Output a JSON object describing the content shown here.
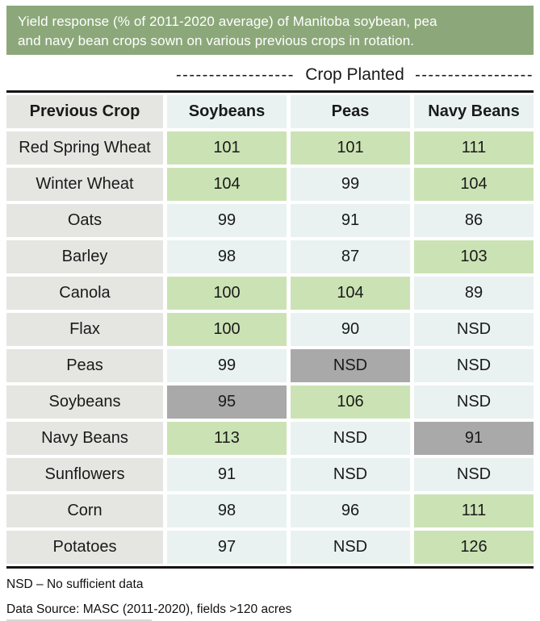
{
  "banner": {
    "line1": "Yield response (% of 2011-2020 average) of Manitoba soybean, pea",
    "line2": "and navy bean crops sown on various previous crops in rotation.",
    "bg_color": "#8ca87a",
    "text_color": "#ffffff"
  },
  "crop_planted": {
    "dashes_left": "------------------",
    "label": "Crop Planted",
    "dashes_right": "------------------"
  },
  "table": {
    "columns": [
      "Previous Crop",
      "Soybeans",
      "Peas",
      "Navy Beans"
    ],
    "rows": [
      {
        "label": "Red Spring Wheat",
        "cells": [
          {
            "value": "101",
            "state": "green"
          },
          {
            "value": "101",
            "state": "green"
          },
          {
            "value": "111",
            "state": "green"
          }
        ]
      },
      {
        "label": "Winter Wheat",
        "cells": [
          {
            "value": "104",
            "state": "green"
          },
          {
            "value": "99",
            "state": "pale"
          },
          {
            "value": "104",
            "state": "green"
          }
        ]
      },
      {
        "label": "Oats",
        "cells": [
          {
            "value": "99",
            "state": "pale"
          },
          {
            "value": "91",
            "state": "pale"
          },
          {
            "value": "86",
            "state": "pale"
          }
        ]
      },
      {
        "label": "Barley",
        "cells": [
          {
            "value": "98",
            "state": "pale"
          },
          {
            "value": "87",
            "state": "pale"
          },
          {
            "value": "103",
            "state": "green"
          }
        ]
      },
      {
        "label": "Canola",
        "cells": [
          {
            "value": "100",
            "state": "green"
          },
          {
            "value": "104",
            "state": "green"
          },
          {
            "value": "89",
            "state": "pale"
          }
        ]
      },
      {
        "label": "Flax",
        "cells": [
          {
            "value": "100",
            "state": "green"
          },
          {
            "value": "90",
            "state": "pale"
          },
          {
            "value": "NSD",
            "state": "pale"
          }
        ]
      },
      {
        "label": "Peas",
        "cells": [
          {
            "value": "99",
            "state": "pale"
          },
          {
            "value": "NSD",
            "state": "gray"
          },
          {
            "value": "NSD",
            "state": "pale"
          }
        ]
      },
      {
        "label": "Soybeans",
        "cells": [
          {
            "value": "95",
            "state": "gray"
          },
          {
            "value": "106",
            "state": "green"
          },
          {
            "value": "NSD",
            "state": "pale"
          }
        ]
      },
      {
        "label": "Navy Beans",
        "cells": [
          {
            "value": "113",
            "state": "green"
          },
          {
            "value": "NSD",
            "state": "pale"
          },
          {
            "value": "91",
            "state": "gray"
          }
        ]
      },
      {
        "label": "Sunflowers",
        "cells": [
          {
            "value": "91",
            "state": "pale"
          },
          {
            "value": "NSD",
            "state": "pale"
          },
          {
            "value": "NSD",
            "state": "pale"
          }
        ]
      },
      {
        "label": "Corn",
        "cells": [
          {
            "value": "98",
            "state": "pale"
          },
          {
            "value": "96",
            "state": "pale"
          },
          {
            "value": "111",
            "state": "green"
          }
        ]
      },
      {
        "label": "Potatoes",
        "cells": [
          {
            "value": "97",
            "state": "pale"
          },
          {
            "value": "NSD",
            "state": "pale"
          },
          {
            "value": "126",
            "state": "green"
          }
        ]
      }
    ]
  },
  "footnotes": {
    "nsd": "NSD – No sufficient data",
    "source": "Data Source: MASC (2011-2020), fields >120 acres"
  },
  "colors": {
    "green": "#cbe3b4",
    "pale": "#e9f2f0",
    "gray": "#a9a9a9",
    "label_bg": "#e5e5e2",
    "header_data_bg": "#e9f2f0",
    "banner_green": "#8ca87a",
    "rule_black": "#141414"
  },
  "chart_data": {
    "type": "table",
    "title": "Yield response (% of 2011-2020 average) of Manitoba soybean, pea and navy bean crops sown on various previous crops in rotation.",
    "column_group_label": "Crop Planted",
    "row_axis_label": "Previous Crop",
    "columns": [
      "Soybeans",
      "Peas",
      "Navy Beans"
    ],
    "rows": [
      "Red Spring Wheat",
      "Winter Wheat",
      "Oats",
      "Barley",
      "Canola",
      "Flax",
      "Peas",
      "Soybeans",
      "Navy Beans",
      "Sunflowers",
      "Corn",
      "Potatoes"
    ],
    "values": [
      [
        101,
        101,
        111
      ],
      [
        104,
        99,
        104
      ],
      [
        99,
        91,
        86
      ],
      [
        98,
        87,
        103
      ],
      [
        100,
        104,
        89
      ],
      [
        100,
        90,
        "NSD"
      ],
      [
        99,
        "NSD",
        "NSD"
      ],
      [
        95,
        106,
        "NSD"
      ],
      [
        113,
        "NSD",
        91
      ],
      [
        91,
        "NSD",
        "NSD"
      ],
      [
        98,
        96,
        111
      ],
      [
        97,
        "NSD",
        126
      ]
    ],
    "cell_colors": [
      [
        "green",
        "green",
        "green"
      ],
      [
        "green",
        "pale",
        "green"
      ],
      [
        "pale",
        "pale",
        "pale"
      ],
      [
        "pale",
        "pale",
        "green"
      ],
      [
        "green",
        "green",
        "pale"
      ],
      [
        "green",
        "pale",
        "pale"
      ],
      [
        "pale",
        "gray",
        "pale"
      ],
      [
        "gray",
        "green",
        "pale"
      ],
      [
        "green",
        "pale",
        "gray"
      ],
      [
        "pale",
        "pale",
        "pale"
      ],
      [
        "pale",
        "pale",
        "green"
      ],
      [
        "pale",
        "pale",
        "green"
      ]
    ],
    "footnotes": [
      "NSD – No sufficient data",
      "Data Source: MASC (2011-2020), fields >120 acres"
    ]
  }
}
